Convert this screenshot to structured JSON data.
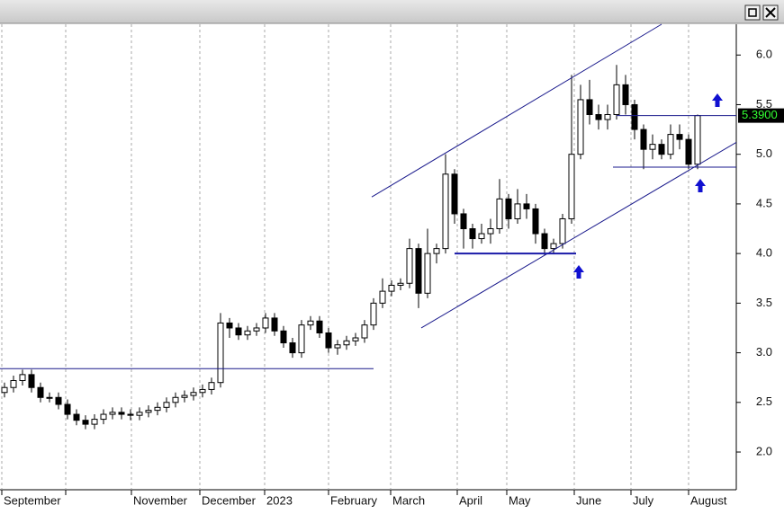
{
  "chart_data": {
    "type": "candlestick",
    "open": [
      2.6,
      2.65,
      2.72,
      2.78,
      2.65,
      2.55,
      2.55,
      2.48,
      2.38,
      2.32,
      2.28,
      2.33,
      2.38,
      2.4,
      2.38,
      2.37,
      2.4,
      2.42,
      2.45,
      2.5,
      2.55,
      2.57,
      2.6,
      2.63,
      2.7,
      3.3,
      3.25,
      3.18,
      3.22,
      3.25,
      3.35,
      3.22,
      3.1,
      3.0,
      3.28,
      3.32,
      3.2,
      3.05,
      3.08,
      3.12,
      3.15,
      3.28,
      3.5,
      3.62,
      3.68,
      3.7,
      4.05,
      3.6,
      4.0,
      4.05,
      4.8,
      4.4,
      4.25,
      4.15,
      4.2,
      4.25,
      4.55,
      4.35,
      4.5,
      4.45,
      4.2,
      4.05,
      4.1,
      4.35,
      5.0,
      5.55,
      5.4,
      5.35,
      5.4,
      5.7,
      5.5,
      5.25,
      5.05,
      5.1,
      5.0,
      5.2,
      5.15,
      4.9
    ],
    "high": [
      2.7,
      2.77,
      2.83,
      2.83,
      2.7,
      2.6,
      2.6,
      2.53,
      2.43,
      2.37,
      2.38,
      2.43,
      2.45,
      2.45,
      2.43,
      2.45,
      2.47,
      2.5,
      2.55,
      2.6,
      2.62,
      2.65,
      2.68,
      2.75,
      3.4,
      3.35,
      3.3,
      3.27,
      3.3,
      3.4,
      3.4,
      3.27,
      3.15,
      3.33,
      3.37,
      3.37,
      3.25,
      3.13,
      3.17,
      3.2,
      3.33,
      3.55,
      3.75,
      3.73,
      3.75,
      4.15,
      4.1,
      4.25,
      4.1,
      5.0,
      4.85,
      4.45,
      4.3,
      4.3,
      4.35,
      4.75,
      4.6,
      4.65,
      4.6,
      4.5,
      4.25,
      4.15,
      4.4,
      5.8,
      5.7,
      5.75,
      5.5,
      5.5,
      5.9,
      5.8,
      5.55,
      5.3,
      5.2,
      5.15,
      5.3,
      5.3,
      5.2,
      5.4
    ],
    "low": [
      2.55,
      2.6,
      2.67,
      2.6,
      2.5,
      2.5,
      2.43,
      2.33,
      2.27,
      2.23,
      2.23,
      2.28,
      2.33,
      2.33,
      2.32,
      2.32,
      2.35,
      2.37,
      2.4,
      2.45,
      2.5,
      2.52,
      2.55,
      2.58,
      2.65,
      3.15,
      3.13,
      3.13,
      3.17,
      3.2,
      3.17,
      3.05,
      2.95,
      2.95,
      3.23,
      3.15,
      3.0,
      2.98,
      3.03,
      3.07,
      3.1,
      3.23,
      3.45,
      3.57,
      3.63,
      3.65,
      3.45,
      3.55,
      3.9,
      4.0,
      4.3,
      4.05,
      4.05,
      4.1,
      4.1,
      4.2,
      4.25,
      4.3,
      4.35,
      4.1,
      3.98,
      4.0,
      4.05,
      4.3,
      4.95,
      5.3,
      5.25,
      5.25,
      5.35,
      5.4,
      5.15,
      4.85,
      4.95,
      4.95,
      4.95,
      5.05,
      4.85,
      4.85
    ],
    "close": [
      2.65,
      2.72,
      2.78,
      2.65,
      2.55,
      2.55,
      2.48,
      2.38,
      2.32,
      2.28,
      2.33,
      2.38,
      2.4,
      2.38,
      2.37,
      2.4,
      2.42,
      2.45,
      2.5,
      2.55,
      2.57,
      2.6,
      2.63,
      2.7,
      3.3,
      3.25,
      3.18,
      3.22,
      3.25,
      3.35,
      3.22,
      3.1,
      3.0,
      3.28,
      3.32,
      3.2,
      3.05,
      3.08,
      3.12,
      3.15,
      3.28,
      3.5,
      3.62,
      3.68,
      3.7,
      4.05,
      3.6,
      4.0,
      4.05,
      4.8,
      4.4,
      4.25,
      4.15,
      4.2,
      4.25,
      4.55,
      4.35,
      4.5,
      4.45,
      4.2,
      4.05,
      4.1,
      4.35,
      5.0,
      5.55,
      5.4,
      5.35,
      5.4,
      5.7,
      5.5,
      5.25,
      5.05,
      5.1,
      5.0,
      5.2,
      5.15,
      4.9,
      5.39
    ],
    "xlim": [
      -0.5,
      81.3
    ],
    "xticks": [
      {
        "value": -0.3,
        "label": "September"
      },
      {
        "value": 6.8,
        "label": null
      },
      {
        "value": 14.1,
        "label": "November"
      },
      {
        "value": 21.7,
        "label": "December"
      },
      {
        "value": 28.9,
        "label": "2023"
      },
      {
        "value": 36,
        "label": "February"
      },
      {
        "value": 42.9,
        "label": "March"
      },
      {
        "value": 50.3,
        "label": "April"
      },
      {
        "value": 55.8,
        "label": "May"
      },
      {
        "value": 63.3,
        "label": "June"
      },
      {
        "value": 69.6,
        "label": "July"
      },
      {
        "value": 76,
        "label": "August"
      }
    ],
    "ylim": [
      1.62,
      6.31
    ],
    "yticks": [
      {
        "value": 2,
        "label": "2.0"
      },
      {
        "value": 2.5,
        "label": "2.5"
      },
      {
        "value": 3,
        "label": "3.0"
      },
      {
        "value": 3.5,
        "label": "3.5"
      },
      {
        "value": 4,
        "label": "4.0"
      },
      {
        "value": 4.5,
        "label": "4.5"
      },
      {
        "value": 5,
        "label": "5.0"
      },
      {
        "value": 5.5,
        "label": "5.5"
      },
      {
        "value": 6,
        "label": "6.0"
      }
    ],
    "last_price": {
      "value": 5.39,
      "label": "5.3900"
    },
    "lines": [
      {
        "x": [
          -0.5,
          41
        ],
        "y": [
          2.84,
          2.84
        ],
        "color": "#1a1a8c",
        "width": 1
      },
      {
        "x": [
          40.8,
          73
        ],
        "y": [
          4.57,
          6.31
        ],
        "color": "#1a1a8c",
        "width": 1
      },
      {
        "x": [
          46.3,
          81.3
        ],
        "y": [
          3.25,
          5.12
        ],
        "color": "#1a1a8c",
        "width": 1
      },
      {
        "x": [
          50,
          63.5
        ],
        "y": [
          4.0,
          4.0
        ],
        "color": "#1a1aa8",
        "width": 2
      },
      {
        "x": [
          67.6,
          81.3
        ],
        "y": [
          4.87,
          4.87
        ],
        "color": "#1a1a8c",
        "width": 1
      },
      {
        "x": [
          68,
          81.3
        ],
        "y": [
          5.39,
          5.39
        ],
        "color": "#1a1a8c",
        "width": 1
      }
    ]
  }
}
